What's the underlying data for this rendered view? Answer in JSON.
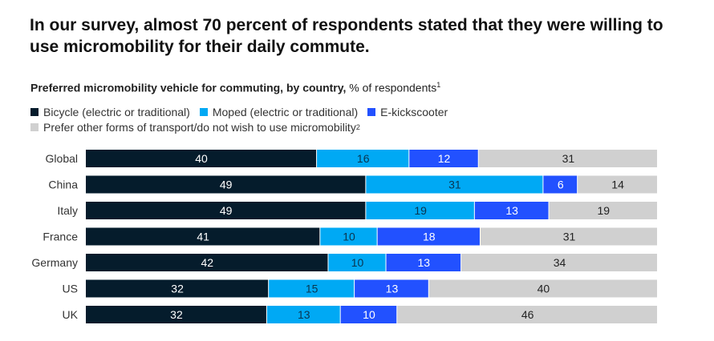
{
  "headline": "In our survey, almost 70 percent of respondents stated that they were willing to use micromobility for their daily commute.",
  "subtitle": {
    "bold": "Preferred micromobility vehicle for commuting, by country,",
    "normal": " % of respondents",
    "footnote": "1"
  },
  "colors": {
    "bicycle": "#051c2c",
    "moped": "#00a9f4",
    "kickscooter": "#2251ff",
    "other": "#d0d0d0"
  },
  "chart_data": {
    "type": "bar",
    "orientation": "horizontal",
    "stacked": true,
    "normalized": true,
    "categories": [
      "Global",
      "China",
      "Italy",
      "France",
      "Germany",
      "US",
      "UK"
    ],
    "series": [
      {
        "name": "Bicycle (electric or traditional)",
        "key": "bicycle",
        "values": [
          40,
          49,
          49,
          41,
          42,
          32,
          32
        ]
      },
      {
        "name": "Moped (electric or traditional)",
        "key": "moped",
        "values": [
          16,
          31,
          19,
          10,
          10,
          15,
          13
        ]
      },
      {
        "name": "E-kickscooter",
        "key": "kickscooter",
        "values": [
          12,
          6,
          13,
          18,
          13,
          13,
          10
        ]
      },
      {
        "name": "Prefer other forms of transport/do not wish to use micromobility",
        "key": "other",
        "footnote": "2",
        "values": [
          31,
          14,
          19,
          31,
          34,
          40,
          46
        ]
      }
    ],
    "xlabel": "",
    "ylabel": "",
    "grid": false
  }
}
